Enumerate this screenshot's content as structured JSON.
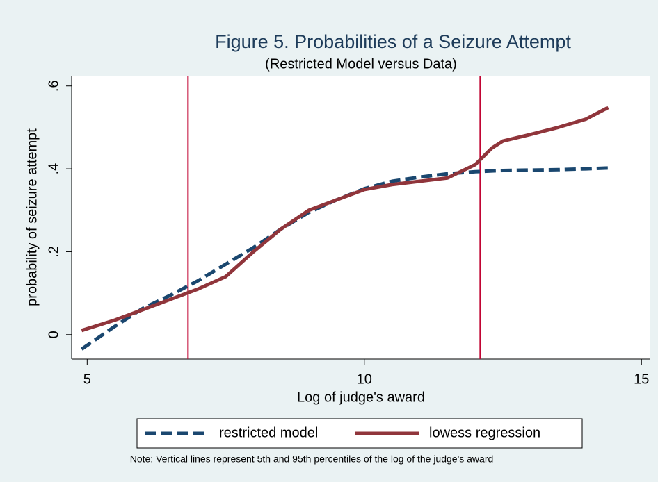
{
  "chart_data": {
    "type": "line",
    "title": "Figure 5. Probabilities of a Seizure Attempt",
    "subtitle": "(Restricted Model versus Data)",
    "x_label": "Log of judge's award",
    "y_label": "probability of seizure attempt",
    "note": "Note: Vertical lines represent 5th and 95th percentiles of the log of the judge's award",
    "xlim": [
      4.72,
      15.16
    ],
    "xticks": [
      5,
      10,
      15
    ],
    "ylim": [
      -0.059,
      0.623
    ],
    "yticks": [
      {
        "value": 0,
        "label": "0"
      },
      {
        "value": 0.2,
        "label": ".2"
      },
      {
        "value": 0.4,
        "label": ".4"
      },
      {
        "value": 0.6,
        "label": ".6"
      }
    ],
    "vlines": [
      6.82,
      12.09
    ],
    "vline_color": "#c10534",
    "series": [
      {
        "name": "restricted model",
        "color": "#1a476f",
        "dashed": true,
        "x": [
          4.9,
          5.5,
          6,
          6.5,
          7,
          7.5,
          8,
          8.5,
          9,
          9.5,
          10,
          10.5,
          11,
          11.5,
          12,
          12.5,
          13,
          13.5,
          14,
          14.4
        ],
        "values": [
          -0.035,
          0.02,
          0.063,
          0.095,
          0.13,
          0.17,
          0.21,
          0.255,
          0.295,
          0.325,
          0.352,
          0.37,
          0.38,
          0.388,
          0.393,
          0.396,
          0.397,
          0.398,
          0.4,
          0.402
        ]
      },
      {
        "name": "lowess regression",
        "color": "#90353b",
        "dashed": false,
        "x": [
          4.9,
          5.5,
          6,
          6.5,
          7,
          7.5,
          8,
          8.5,
          9,
          9.5,
          10,
          10.5,
          11,
          11.5,
          12,
          12.3,
          12.5,
          13,
          13.5,
          14,
          14.4
        ],
        "values": [
          0.01,
          0.035,
          0.06,
          0.085,
          0.11,
          0.14,
          0.2,
          0.255,
          0.3,
          0.325,
          0.35,
          0.362,
          0.37,
          0.378,
          0.41,
          0.45,
          0.467,
          0.483,
          0.5,
          0.52,
          0.548
        ]
      }
    ]
  }
}
